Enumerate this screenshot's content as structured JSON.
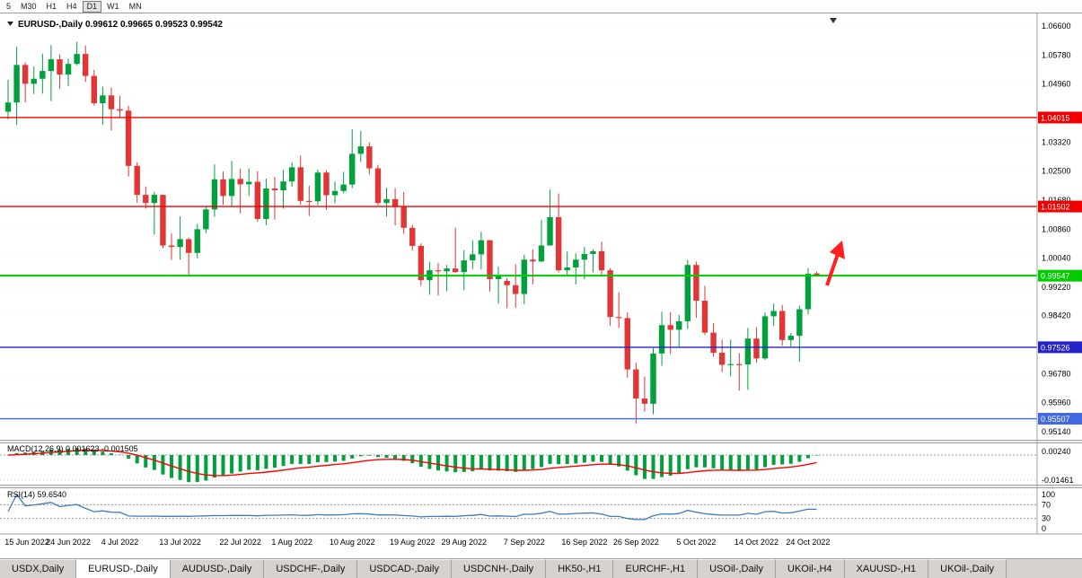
{
  "toolbar": {
    "timeframes": [
      {
        "label": "5",
        "active": false
      },
      {
        "label": "M30",
        "active": false
      },
      {
        "label": "H1",
        "active": false
      },
      {
        "label": "H4",
        "active": false
      },
      {
        "label": "D1",
        "active": true
      },
      {
        "label": "W1",
        "active": false
      },
      {
        "label": "MN",
        "active": false
      }
    ]
  },
  "chart_data": {
    "type": "candlestick",
    "title": "EURUSD-,Daily",
    "symbol": "EURUSD-",
    "timeframe": "Daily",
    "current_ohlc": {
      "open": "0.99612",
      "high": "0.99665",
      "low": "0.99523",
      "close": "0.99542"
    },
    "ylim": [
      0.9514,
      1.066
    ],
    "y_ticks": [
      {
        "label": "1.06600",
        "price": 1.066
      },
      {
        "label": "1.05780",
        "price": 1.0578
      },
      {
        "label": "1.04960",
        "price": 1.0496
      },
      {
        "label": "1.03320",
        "price": 1.0332
      },
      {
        "label": "1.02500",
        "price": 1.025
      },
      {
        "label": "1.01680",
        "price": 1.0168
      },
      {
        "label": "1.00860",
        "price": 1.0086
      },
      {
        "label": "1.00040",
        "price": 1.0004
      },
      {
        "label": "0.99220",
        "price": 0.9922
      },
      {
        "label": "0.98420",
        "price": 0.9842
      },
      {
        "label": "0.96780",
        "price": 0.9678
      },
      {
        "label": "0.95960",
        "price": 0.9596
      },
      {
        "label": "0.95140",
        "price": 0.9514
      }
    ],
    "x_ticks": [
      {
        "label": "15 Jun 2022",
        "index": 0
      },
      {
        "label": "24 Jun 2022",
        "index": 7
      },
      {
        "label": "4 Jul 2022",
        "index": 13
      },
      {
        "label": "13 Jul 2022",
        "index": 20
      },
      {
        "label": "22 Jul 2022",
        "index": 27
      },
      {
        "label": "1 Aug 2022",
        "index": 33
      },
      {
        "label": "10 Aug 2022",
        "index": 40
      },
      {
        "label": "19 Aug 2022",
        "index": 47
      },
      {
        "label": "29 Aug 2022",
        "index": 53
      },
      {
        "label": "7 Sep 2022",
        "index": 60
      },
      {
        "label": "16 Sep 2022",
        "index": 67
      },
      {
        "label": "26 Sep 2022",
        "index": 73
      },
      {
        "label": "5 Oct 2022",
        "index": 80
      },
      {
        "label": "14 Oct 2022",
        "index": 87
      },
      {
        "label": "24 Oct 2022",
        "index": 93
      }
    ],
    "hlines": [
      {
        "label": "1.04015",
        "price": 1.04015,
        "color": "#f20000",
        "width": 1.4
      },
      {
        "label": "1.01502",
        "price": 1.01502,
        "color": "#f20000",
        "width": 1.4
      },
      {
        "label": "0.99547",
        "price": 0.99547,
        "color": "#00cc00",
        "width": 2
      },
      {
        "label": "0.97526",
        "price": 0.97526,
        "color": "#2222c8",
        "width": 1.4
      },
      {
        "label": "0.95507",
        "price": 0.95507,
        "color": "#4169e1",
        "width": 1.4
      }
    ],
    "candle_colors": {
      "up": "#00a03c",
      "down": "#e03636"
    },
    "candles": [
      [
        1.0418,
        1.0508,
        1.0396,
        1.0444
      ],
      [
        1.0444,
        1.0601,
        1.0381,
        1.055
      ],
      [
        1.055,
        1.0557,
        1.0444,
        1.0497
      ],
      [
        1.0497,
        1.0546,
        1.0468,
        1.0511
      ],
      [
        1.0511,
        1.0582,
        1.0469,
        1.0533
      ],
      [
        1.0533,
        1.0606,
        1.0448,
        1.0566
      ],
      [
        1.0566,
        1.058,
        1.0483,
        1.0523
      ],
      [
        1.0523,
        1.0567,
        1.049,
        1.0553
      ],
      [
        1.0553,
        1.0615,
        1.0549,
        1.0581
      ],
      [
        1.0581,
        1.0605,
        1.0502,
        1.0519
      ],
      [
        1.0519,
        1.0536,
        1.0435,
        1.0442
      ],
      [
        1.0442,
        1.0489,
        1.0381,
        1.0464
      ],
      [
        1.0464,
        1.0486,
        1.0365,
        1.0425
      ],
      [
        1.0425,
        1.0463,
        1.04,
        1.0421
      ],
      [
        1.0421,
        1.0435,
        1.0235,
        1.0265
      ],
      [
        1.0265,
        1.0275,
        1.0161,
        1.0183
      ],
      [
        1.0183,
        1.0207,
        1.0144,
        1.016
      ],
      [
        1.016,
        1.0192,
        1.0071,
        1.0183
      ],
      [
        1.0183,
        1.0183,
        1.0032,
        1.004
      ],
      [
        1.004,
        1.0074,
        0.9999,
        1.0036
      ],
      [
        1.0036,
        1.0122,
        1.0,
        1.0058
      ],
      [
        1.0058,
        1.0062,
        0.9952,
        1.0019
      ],
      [
        1.0019,
        1.0101,
        1.0004,
        1.0086
      ],
      [
        1.0086,
        1.0151,
        1.0075,
        1.0142
      ],
      [
        1.0142,
        1.0269,
        1.0121,
        1.0227
      ],
      [
        1.0227,
        1.0249,
        1.0155,
        1.018
      ],
      [
        1.018,
        1.0279,
        1.0152,
        1.0228
      ],
      [
        1.0228,
        1.0257,
        1.0131,
        1.0213
      ],
      [
        1.0213,
        1.0258,
        1.018,
        1.022
      ],
      [
        1.022,
        1.025,
        1.0108,
        1.0115
      ],
      [
        1.0115,
        1.0229,
        1.0097,
        1.0201
      ],
      [
        1.0201,
        1.0234,
        1.0113,
        1.0196
      ],
      [
        1.0196,
        1.0254,
        1.0144,
        1.0221
      ],
      [
        1.0221,
        1.0275,
        1.0206,
        1.0261
      ],
      [
        1.0261,
        1.0294,
        1.0155,
        1.0166
      ],
      [
        1.0166,
        1.0209,
        1.0123,
        1.0165
      ],
      [
        1.0165,
        1.0254,
        1.0154,
        1.0246
      ],
      [
        1.0246,
        1.0253,
        1.0141,
        1.0182
      ],
      [
        1.0182,
        1.0221,
        1.0159,
        1.0194
      ],
      [
        1.0194,
        1.0248,
        1.0187,
        1.0212
      ],
      [
        1.0212,
        1.0368,
        1.0202,
        1.0299
      ],
      [
        1.0299,
        1.0364,
        1.0276,
        1.032
      ],
      [
        1.032,
        1.0331,
        1.0241,
        1.0258
      ],
      [
        1.0258,
        1.0268,
        1.0154,
        1.016
      ],
      [
        1.016,
        1.0203,
        1.0122,
        1.0171
      ],
      [
        1.0171,
        1.0202,
        1.0097,
        1.015
      ],
      [
        1.015,
        1.0191,
        1.0073,
        1.009
      ],
      [
        1.009,
        1.0098,
        1.0026,
        1.0039
      ],
      [
        1.0039,
        1.0046,
        0.9926,
        0.9942
      ],
      [
        0.9942,
        0.9994,
        0.9901,
        0.997
      ],
      [
        0.997,
        0.9991,
        0.9899,
        0.9967
      ],
      [
        0.9967,
        0.9985,
        0.9911,
        0.9975
      ],
      [
        0.9975,
        1.009,
        0.9962,
        0.9965
      ],
      [
        0.9965,
        1.0027,
        0.9914,
        0.9998
      ],
      [
        0.9998,
        1.0055,
        0.9973,
        1.0015
      ],
      [
        1.0015,
        1.0079,
        0.9972,
        1.0055
      ],
      [
        1.0055,
        1.0055,
        0.991,
        0.9945
      ],
      [
        0.9945,
        0.998,
        0.9876,
        0.9953
      ],
      [
        0.994,
        0.9948,
        0.9863,
        0.9928
      ],
      [
        0.9928,
        0.9987,
        0.9864,
        0.9903
      ],
      [
        0.9903,
        1.0014,
        0.9874,
        1.0
      ],
      [
        1.0,
        1.0029,
        0.993,
        0.9995
      ],
      [
        0.9995,
        1.0113,
        0.9993,
        1.004
      ],
      [
        1.004,
        1.0198,
        1.004,
        1.012
      ],
      [
        1.012,
        1.0187,
        0.9964,
        0.997
      ],
      [
        0.997,
        1.0023,
        0.9955,
        0.9978
      ],
      [
        0.9978,
        1.0018,
        0.993,
        1.0
      ],
      [
        1.0,
        1.0036,
        0.9945,
        1.0016
      ],
      [
        1.0016,
        1.0029,
        0.9964,
        1.0024
      ],
      [
        1.0024,
        1.0051,
        0.9955,
        0.997
      ],
      [
        0.997,
        0.9976,
        0.9813,
        0.9838
      ],
      [
        0.9838,
        0.9908,
        0.9807,
        0.9835
      ],
      [
        0.9835,
        0.9851,
        0.9667,
        0.969
      ],
      [
        0.969,
        0.9709,
        0.9536,
        0.9608
      ],
      [
        0.9608,
        0.967,
        0.957,
        0.9593
      ],
      [
        0.9593,
        0.975,
        0.9563,
        0.9735
      ],
      [
        0.9735,
        0.9853,
        0.97,
        0.9815
      ],
      [
        0.9815,
        0.9852,
        0.9733,
        0.9802
      ],
      [
        0.9802,
        0.9844,
        0.9752,
        0.9826
      ],
      [
        0.9826,
        0.9999,
        0.9804,
        0.9985
      ],
      [
        0.9985,
        0.9995,
        0.9835,
        0.9884
      ],
      [
        0.9884,
        0.9926,
        0.9787,
        0.9794
      ],
      [
        0.9794,
        0.9821,
        0.9726,
        0.9737
      ],
      [
        0.9737,
        0.9774,
        0.9682,
        0.9703
      ],
      [
        0.9703,
        0.9774,
        0.967,
        0.9705
      ],
      [
        0.9705,
        0.9736,
        0.963,
        0.9704
      ],
      [
        0.9704,
        0.9807,
        0.9632,
        0.9777
      ],
      [
        0.9777,
        0.9809,
        0.9709,
        0.9721
      ],
      [
        0.9721,
        0.9851,
        0.9717,
        0.984
      ],
      [
        0.984,
        0.9876,
        0.9813,
        0.9855
      ],
      [
        0.9855,
        0.9872,
        0.9757,
        0.9773
      ],
      [
        0.9773,
        0.9793,
        0.9755,
        0.9785
      ],
      [
        0.9785,
        0.987,
        0.9712,
        0.986
      ],
      [
        0.986,
        0.9976,
        0.9845,
        0.996
      ],
      [
        0.99612,
        0.99665,
        0.99523,
        0.99542
      ]
    ],
    "indicators": [
      {
        "name": "MACD",
        "label": "MACD(12,26,9) 0.001623 -0.001505",
        "fast": 12,
        "slow": 26,
        "signal": 9,
        "value_main": "0.001623",
        "value_signal": "-0.001505",
        "axis_labels": [
          "0.00240",
          "-0.01461"
        ],
        "histogram_color": "#00a03c",
        "signal_color": "#ff0000"
      },
      {
        "name": "RSI",
        "label": "RSI(14) 59.6540",
        "period": 14,
        "value": "59.6540",
        "levels": [
          70,
          30
        ],
        "axis_labels": [
          {
            "label": "100",
            "value": 100
          },
          {
            "label": "70",
            "value": 70
          },
          {
            "label": "30",
            "value": 30
          },
          {
            "label": "0",
            "value": 0
          }
        ],
        "line_color": "#3e7bbf"
      }
    ],
    "annotations": [
      {
        "type": "arrow",
        "direction": "up",
        "color": "#ff1f1f"
      }
    ]
  },
  "tabs": [
    {
      "label": "USDX,Daily",
      "active": false
    },
    {
      "label": "EURUSD-,Daily",
      "active": true
    },
    {
      "label": "AUDUSD-,Daily",
      "active": false
    },
    {
      "label": "USDCHF-,Daily",
      "active": false
    },
    {
      "label": "USDCAD-,Daily",
      "active": false
    },
    {
      "label": "USDCNH-,Daily",
      "active": false
    },
    {
      "label": "HK50-,H1",
      "active": false
    },
    {
      "label": "EURCHF-,H1",
      "active": false
    },
    {
      "label": "USOil-,Daily",
      "active": false
    },
    {
      "label": "UKOil-,H4",
      "active": false
    },
    {
      "label": "XAUUSD-,H1",
      "active": false
    },
    {
      "label": "UKOil-,Daily",
      "active": false
    }
  ]
}
